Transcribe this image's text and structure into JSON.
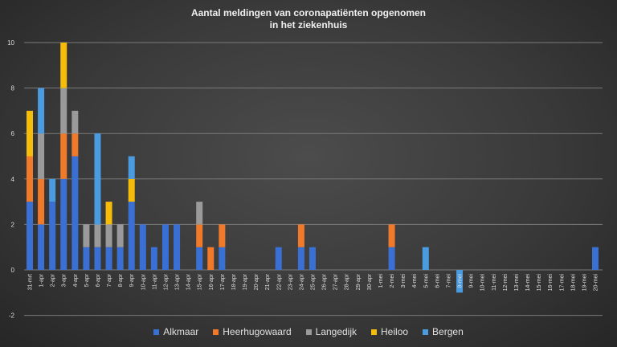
{
  "chart_data": {
    "type": "bar",
    "stacked": true,
    "title_lines": [
      "Aantal meldingen van coronapatiënten opgenomen",
      "in het ziekenhuis"
    ],
    "xlabel": "",
    "ylabel": "",
    "ylim": [
      -2,
      10
    ],
    "yticks": [
      "-2",
      "0",
      "2",
      "4",
      "6",
      "8",
      "10"
    ],
    "grid": true,
    "legend_position": "bottom",
    "categories": [
      "31-mrt",
      "1-apr",
      "2-apr",
      "3-apr",
      "4-apr",
      "5-apr",
      "6-apr",
      "7-apr",
      "8-apr",
      "9-apr",
      "10-apr",
      "11-apr",
      "12-apr",
      "13-apr",
      "14-apr",
      "15-apr",
      "16-apr",
      "17-apr",
      "18-apr",
      "19-apr",
      "20-apr",
      "21-apr",
      "22-apr",
      "23-apr",
      "24-apr",
      "25-apr",
      "26-apr",
      "27-apr",
      "28-apr",
      "29-apr",
      "30-apr",
      "1-mei",
      "2-mei",
      "3-mei",
      "4-mei",
      "5-mei",
      "6-mei",
      "7-mei",
      "8-mei",
      "9-mei",
      "10-mei",
      "11-mei",
      "12-mei",
      "13-mei",
      "14-mei",
      "15-mei",
      "16-mei",
      "17-mei",
      "18-mei",
      "19-mei",
      "20-mei"
    ],
    "series": [
      {
        "name": "Alkmaar",
        "color": "#3a6fd4",
        "values": [
          3,
          2,
          3,
          4,
          5,
          1,
          1,
          1,
          1,
          3,
          2,
          1,
          2,
          2,
          0,
          1,
          0,
          1,
          0,
          0,
          0,
          0,
          1,
          0,
          1,
          1,
          0,
          0,
          0,
          0,
          0,
          0,
          1,
          0,
          0,
          0,
          0,
          0,
          0,
          0,
          0,
          0,
          0,
          0,
          0,
          0,
          0,
          0,
          0,
          0,
          1
        ]
      },
      {
        "name": "Heerhugowaard",
        "color": "#f07a2a",
        "values": [
          2,
          2,
          0,
          2,
          1,
          0,
          0,
          0,
          0,
          0,
          0,
          0,
          0,
          0,
          0,
          1,
          1,
          1,
          0,
          0,
          0,
          0,
          0,
          0,
          1,
          0,
          0,
          0,
          0,
          0,
          0,
          0,
          1,
          0,
          0,
          0,
          0,
          0,
          0,
          0,
          0,
          0,
          0,
          0,
          0,
          0,
          0,
          0,
          0,
          0,
          0
        ]
      },
      {
        "name": "Langedijk",
        "color": "#9a9a9a",
        "values": [
          0,
          2,
          0,
          2,
          1,
          1,
          1,
          1,
          1,
          0,
          0,
          0,
          0,
          0,
          0,
          1,
          0,
          0,
          0,
          0,
          0,
          0,
          0,
          0,
          0,
          0,
          0,
          0,
          0,
          0,
          0,
          0,
          0,
          0,
          0,
          0,
          0,
          0,
          0,
          0,
          0,
          0,
          0,
          0,
          0,
          0,
          0,
          0,
          0,
          0,
          0
        ]
      },
      {
        "name": "Heiloo",
        "color": "#f5bd0a",
        "values": [
          2,
          0,
          0,
          2,
          0,
          0,
          0,
          1,
          0,
          1,
          0,
          0,
          0,
          0,
          0,
          0,
          0,
          0,
          0,
          0,
          0,
          0,
          0,
          0,
          0,
          0,
          0,
          0,
          0,
          0,
          0,
          0,
          0,
          0,
          0,
          0,
          0,
          0,
          0,
          0,
          0,
          0,
          0,
          0,
          0,
          0,
          0,
          0,
          0,
          0,
          0
        ]
      },
      {
        "name": "Bergen",
        "color": "#4a9be0",
        "values": [
          0,
          2,
          1,
          0,
          0,
          0,
          4,
          0,
          0,
          1,
          0,
          0,
          0,
          0,
          0,
          0,
          0,
          0,
          0,
          0,
          0,
          0,
          0,
          0,
          0,
          0,
          0,
          0,
          0,
          0,
          0,
          0,
          0,
          0,
          0,
          1,
          0,
          0,
          -1,
          0,
          0,
          0,
          0,
          0,
          0,
          0,
          0,
          0,
          0,
          0,
          0
        ]
      }
    ]
  }
}
